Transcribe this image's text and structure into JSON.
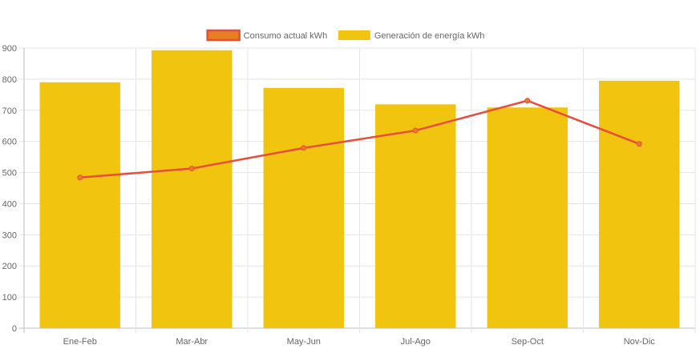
{
  "chart_data": {
    "type": "bar",
    "categories": [
      "Ene-Feb",
      "Mar-Abr",
      "May-Jun",
      "Jul-Ago",
      "Sep-Oct",
      "Nov-Dic"
    ],
    "series": [
      {
        "name": "Consumo actual kWh",
        "kind": "line",
        "values": [
          484,
          513,
          579,
          635,
          731,
          592
        ],
        "color": "#e74c3c",
        "point_color": "#e67e22"
      },
      {
        "name": "Generación de energía kWh",
        "kind": "bar",
        "values": [
          790,
          893,
          772,
          719,
          709,
          795
        ],
        "color": "#f1c40f"
      }
    ],
    "y_ticks": [
      0,
      100,
      200,
      300,
      400,
      500,
      600,
      700,
      800,
      900
    ],
    "ylim": [
      0,
      900
    ],
    "grid": true,
    "legend_position": "top-center",
    "title": "",
    "xlabel": "",
    "ylabel": ""
  }
}
